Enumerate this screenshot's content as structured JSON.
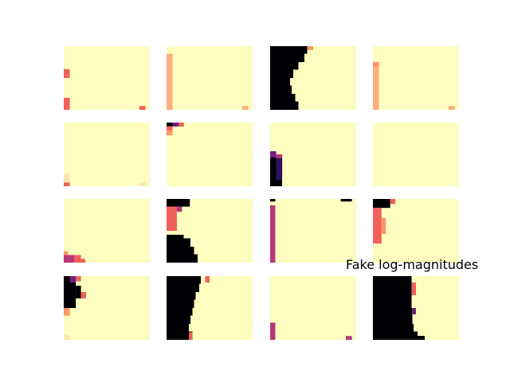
{
  "figure": {
    "annotation": "Fake log-magnitudes"
  },
  "colors": {
    "background": "#ffffff",
    "colormap": "magma",
    "black": "#000004",
    "dark_purple": "#2c115f",
    "purple": "#721f81",
    "magenta": "#b73779",
    "red": "#f1605d",
    "orange": "#fd9567",
    "peach": "#fcae7c",
    "light_peach": "#fde3b0",
    "pale_yellow": "#fcfdbf"
  },
  "chart_data": {
    "type": "heatmap",
    "grid": "4x4",
    "axes_visible": false,
    "colormap": "magma",
    "title": "",
    "annotation": "Fake log-magnitudes",
    "panels": [
      {
        "row": 0,
        "col": 0,
        "background": "#fcfdbf",
        "features": [
          {
            "type": "rect",
            "x0": 0.0,
            "x1": 0.07,
            "y0": 0.36,
            "y1": 0.5,
            "color": "#f1605d"
          },
          {
            "type": "rect",
            "x0": 0.0,
            "x1": 0.07,
            "y0": 0.81,
            "y1": 1.0,
            "color": "#f1605d"
          },
          {
            "type": "rect",
            "x0": 0.88,
            "x1": 0.95,
            "y0": 0.94,
            "y1": 1.0,
            "color": "#f1605d"
          }
        ]
      },
      {
        "row": 0,
        "col": 1,
        "background": "#fcfdbf",
        "features": [
          {
            "type": "rect",
            "x0": 0.0,
            "x1": 0.07,
            "y0": 0.12,
            "y1": 1.0,
            "color": "#fcae7c"
          },
          {
            "type": "rect",
            "x0": 0.88,
            "x1": 0.95,
            "y0": 0.94,
            "y1": 1.0,
            "color": "#fcae7c"
          }
        ]
      },
      {
        "row": 0,
        "col": 2,
        "background": "#fcfdbf",
        "features": [
          {
            "type": "edge",
            "side": "left",
            "color": "#000004",
            "profile": [
              [
                0,
                0.43
              ],
              [
                0.12,
                0.4
              ],
              [
                0.25,
                0.33
              ],
              [
                0.37,
                0.27
              ],
              [
                0.5,
                0.23
              ],
              [
                0.62,
                0.25
              ],
              [
                0.75,
                0.29
              ],
              [
                0.87,
                0.33
              ],
              [
                1,
                0.36
              ]
            ]
          },
          {
            "type": "rect",
            "x0": 0.43,
            "x1": 0.5,
            "y0": 0.0,
            "y1": 0.06,
            "color": "#fd9567"
          }
        ]
      },
      {
        "row": 0,
        "col": 3,
        "background": "#fcfdbf",
        "features": [
          {
            "type": "rect",
            "x0": 0.0,
            "x1": 0.07,
            "y0": 0.25,
            "y1": 1.0,
            "color": "#fcae7c"
          },
          {
            "type": "rect",
            "x0": 0.0,
            "x1": 0.07,
            "y0": 0.25,
            "y1": 0.32,
            "color": "#fd9567"
          },
          {
            "type": "rect",
            "x0": 0.88,
            "x1": 0.95,
            "y0": 0.94,
            "y1": 1.0,
            "color": "#fcae7c"
          }
        ]
      },
      {
        "row": 1,
        "col": 0,
        "background": "#fcfdbf",
        "features": [
          {
            "type": "rect",
            "x0": 0.0,
            "x1": 0.07,
            "y0": 0.8,
            "y1": 0.94,
            "color": "#fde3b0"
          },
          {
            "type": "rect",
            "x0": 0.0,
            "x1": 0.07,
            "y0": 0.94,
            "y1": 1.0,
            "color": "#f1605d"
          },
          {
            "type": "rect",
            "x0": 0.88,
            "x1": 0.95,
            "y0": 0.94,
            "y1": 1.0,
            "color": "#fde3b0"
          }
        ]
      },
      {
        "row": 1,
        "col": 1,
        "background": "#fcfdbf",
        "features": [
          {
            "type": "rect",
            "x0": 0.0,
            "x1": 0.2,
            "y0": 0.0,
            "y1": 0.06,
            "color": "#000004"
          },
          {
            "type": "rect",
            "x0": 0.07,
            "x1": 0.14,
            "y0": 0.0,
            "y1": 0.06,
            "color": "#721f81"
          },
          {
            "type": "rect",
            "x0": 0.14,
            "x1": 0.2,
            "y0": 0.0,
            "y1": 0.06,
            "color": "#f1605d"
          },
          {
            "type": "rect",
            "x0": 0.0,
            "x1": 0.07,
            "y0": 0.06,
            "y1": 0.12,
            "color": "#f1605d"
          },
          {
            "type": "rect",
            "x0": 0.0,
            "x1": 0.07,
            "y0": 0.12,
            "y1": 0.2,
            "color": "#fd9567"
          }
        ]
      },
      {
        "row": 1,
        "col": 2,
        "background": "#fcfdbf",
        "features": [
          {
            "type": "edge",
            "side": "left",
            "color": "#000004",
            "profile": [
              [
                0.4,
                0.0
              ],
              [
                0.5,
                0.07
              ],
              [
                0.62,
                0.1
              ],
              [
                0.75,
                0.12
              ],
              [
                0.87,
                0.14
              ],
              [
                1,
                0.13
              ]
            ]
          },
          {
            "type": "rect",
            "x0": 0.07,
            "x1": 0.14,
            "y0": 0.55,
            "y1": 0.9,
            "color": "#2c115f"
          },
          {
            "type": "rect",
            "x0": 0.0,
            "x1": 0.07,
            "y0": 0.45,
            "y1": 0.55,
            "color": "#721f81"
          },
          {
            "type": "rect",
            "x0": 0.07,
            "x1": 0.14,
            "y0": 0.5,
            "y1": 0.56,
            "color": "#b73779"
          }
        ]
      },
      {
        "row": 1,
        "col": 3,
        "background": "#fcfdbf",
        "features": []
      },
      {
        "row": 2,
        "col": 0,
        "background": "#fcfdbf",
        "features": [
          {
            "type": "rect",
            "x0": 0.0,
            "x1": 0.12,
            "y0": 0.88,
            "y1": 1.0,
            "color": "#b73779"
          },
          {
            "type": "rect",
            "x0": 0.12,
            "x1": 0.2,
            "y0": 0.88,
            "y1": 1.0,
            "color": "#f1605d"
          },
          {
            "type": "rect",
            "x0": 0.2,
            "x1": 0.25,
            "y0": 0.94,
            "y1": 1.0,
            "color": "#f1605d"
          },
          {
            "type": "rect",
            "x0": 0.0,
            "x1": 0.05,
            "y0": 0.82,
            "y1": 0.88,
            "color": "#fd9567"
          }
        ]
      },
      {
        "row": 2,
        "col": 1,
        "background": "#fcfdbf",
        "features": [
          {
            "type": "rect",
            "x0": 0.0,
            "x1": 0.27,
            "y0": 0.0,
            "y1": 0.12,
            "color": "#000004"
          },
          {
            "type": "rect",
            "x0": 0.0,
            "x1": 0.12,
            "y0": 0.12,
            "y1": 0.5,
            "color": "#f1605d"
          },
          {
            "type": "edge",
            "side": "left",
            "color": "#000004",
            "profile": [
              [
                0.5,
                0.0
              ],
              [
                0.56,
                0.2
              ],
              [
                0.62,
                0.28
              ],
              [
                0.75,
                0.32
              ],
              [
                0.87,
                0.36
              ],
              [
                1,
                0.38
              ]
            ]
          },
          {
            "type": "rect",
            "x0": 0.12,
            "x1": 0.18,
            "y0": 0.12,
            "y1": 0.2,
            "color": "#b73779"
          }
        ]
      },
      {
        "row": 2,
        "col": 2,
        "background": "#fcfdbf",
        "features": [
          {
            "type": "rect",
            "x0": 0.0,
            "x1": 0.06,
            "y0": 0.1,
            "y1": 1.0,
            "color": "#b73779"
          },
          {
            "type": "rect",
            "x0": 0.0,
            "x1": 0.06,
            "y0": 0.0,
            "y1": 0.04,
            "color": "#000004"
          },
          {
            "type": "rect",
            "x0": 0.82,
            "x1": 0.95,
            "y0": 0.0,
            "y1": 0.04,
            "color": "#000004"
          }
        ]
      },
      {
        "row": 2,
        "col": 3,
        "background": "#fcfdbf",
        "features": [
          {
            "type": "rect",
            "x0": 0.0,
            "x1": 0.2,
            "y0": 0.0,
            "y1": 0.14,
            "color": "#000004"
          },
          {
            "type": "rect",
            "x0": 0.2,
            "x1": 0.26,
            "y0": 0.0,
            "y1": 0.08,
            "color": "#f1605d"
          },
          {
            "type": "rect",
            "x0": 0.0,
            "x1": 0.1,
            "y0": 0.14,
            "y1": 0.7,
            "color": "#f1605d"
          },
          {
            "type": "rect",
            "x0": 0.1,
            "x1": 0.15,
            "y0": 0.3,
            "y1": 0.55,
            "color": "#fd9567"
          }
        ]
      },
      {
        "row": 3,
        "col": 0,
        "background": "#fcfdbf",
        "features": [
          {
            "type": "rect",
            "x0": 0.0,
            "x1": 0.14,
            "y0": 0.0,
            "y1": 0.5,
            "color": "#000004"
          },
          {
            "type": "rect",
            "x0": 0.14,
            "x1": 0.2,
            "y0": 0.15,
            "y1": 0.35,
            "color": "#000004"
          },
          {
            "type": "rect",
            "x0": 0.07,
            "x1": 0.14,
            "y0": 0.0,
            "y1": 0.1,
            "color": "#721f81"
          },
          {
            "type": "rect",
            "x0": 0.14,
            "x1": 0.2,
            "y0": 0.0,
            "y1": 0.08,
            "color": "#f1605d"
          },
          {
            "type": "rect",
            "x0": 0.2,
            "x1": 0.26,
            "y0": 0.25,
            "y1": 0.35,
            "color": "#f1605d"
          },
          {
            "type": "rect",
            "x0": 0.0,
            "x1": 0.07,
            "y0": 0.5,
            "y1": 0.62,
            "color": "#fd9567"
          },
          {
            "type": "rect",
            "x0": 0.0,
            "x1": 0.07,
            "y0": 0.92,
            "y1": 1.0,
            "color": "#fde3b0"
          }
        ]
      },
      {
        "row": 3,
        "col": 1,
        "background": "#fcfdbf",
        "features": [
          {
            "type": "edge",
            "side": "left",
            "color": "#000004",
            "profile": [
              [
                0,
                0.4
              ],
              [
                0.12,
                0.38
              ],
              [
                0.25,
                0.34
              ],
              [
                0.37,
                0.32
              ],
              [
                0.5,
                0.3
              ],
              [
                0.62,
                0.28
              ],
              [
                0.75,
                0.26
              ],
              [
                0.87,
                0.3
              ],
              [
                1,
                0.34
              ]
            ]
          },
          {
            "type": "rect",
            "x0": 0.45,
            "x1": 0.5,
            "y0": 0.0,
            "y1": 0.1,
            "color": "#f1605d"
          },
          {
            "type": "rect",
            "x0": 0.26,
            "x1": 0.3,
            "y0": 0.88,
            "y1": 1.0,
            "color": "#f1605d"
          }
        ]
      },
      {
        "row": 3,
        "col": 2,
        "background": "#fcfdbf",
        "features": [
          {
            "type": "rect",
            "x0": 0.0,
            "x1": 0.06,
            "y0": 0.73,
            "y1": 1.0,
            "color": "#b73779"
          },
          {
            "type": "rect",
            "x0": 0.88,
            "x1": 0.95,
            "y0": 0.94,
            "y1": 1.0,
            "color": "#b73779"
          }
        ]
      },
      {
        "row": 3,
        "col": 3,
        "background": "#fcfdbf",
        "features": [
          {
            "type": "edge",
            "side": "left",
            "color": "#000004",
            "profile": [
              [
                0,
                0.45
              ],
              [
                0.25,
                0.45
              ],
              [
                0.5,
                0.46
              ],
              [
                0.75,
                0.47
              ],
              [
                0.87,
                0.52
              ],
              [
                0.94,
                0.6
              ],
              [
                1,
                0.6
              ]
            ]
          },
          {
            "type": "rect",
            "x0": 0.45,
            "x1": 0.5,
            "y0": 0.1,
            "y1": 0.3,
            "color": "#f1605d"
          },
          {
            "type": "rect",
            "x0": 0.46,
            "x1": 0.5,
            "y0": 0.5,
            "y1": 0.6,
            "color": "#721f81"
          }
        ]
      }
    ]
  }
}
